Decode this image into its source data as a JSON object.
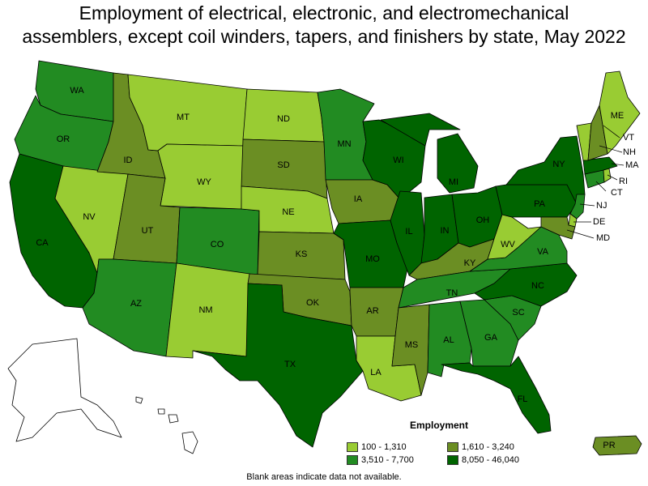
{
  "title": {
    "line1": "Employment of electrical, electronic, and electromechanical",
    "line2": "assemblers, except coil winders, tapers, and finishers by state, May 2022"
  },
  "colors": {
    "bin1": "#99cc33",
    "bin2": "#6b8e23",
    "bin3": "#228b22",
    "bin4": "#006400",
    "na": "#ffffff",
    "border": "#000000"
  },
  "legend": {
    "title": "Employment",
    "items": [
      {
        "label": "100 - 1,310",
        "color_key": "bin1"
      },
      {
        "label": "1,610 - 3,240",
        "color_key": "bin2"
      },
      {
        "label": "3,510 - 7,700",
        "color_key": "bin3"
      },
      {
        "label": "8,050 - 46,040",
        "color_key": "bin4"
      }
    ]
  },
  "footnote": "Blank areas indicate data not available.",
  "states": {
    "WA": {
      "label": "WA",
      "bin": "bin3"
    },
    "OR": {
      "label": "OR",
      "bin": "bin3"
    },
    "CA": {
      "label": "CA",
      "bin": "bin4"
    },
    "NV": {
      "label": "NV",
      "bin": "bin1"
    },
    "ID": {
      "label": "ID",
      "bin": "bin2"
    },
    "MT": {
      "label": "MT",
      "bin": "bin1"
    },
    "WY": {
      "label": "WY",
      "bin": "bin1"
    },
    "UT": {
      "label": "UT",
      "bin": "bin2"
    },
    "AZ": {
      "label": "AZ",
      "bin": "bin3"
    },
    "CO": {
      "label": "CO",
      "bin": "bin3"
    },
    "NM": {
      "label": "NM",
      "bin": "bin1"
    },
    "ND": {
      "label": "ND",
      "bin": "bin1"
    },
    "SD": {
      "label": "SD",
      "bin": "bin2"
    },
    "NE": {
      "label": "NE",
      "bin": "bin1"
    },
    "KS": {
      "label": "KS",
      "bin": "bin2"
    },
    "OK": {
      "label": "OK",
      "bin": "bin2"
    },
    "TX": {
      "label": "TX",
      "bin": "bin4"
    },
    "MN": {
      "label": "MN",
      "bin": "bin3"
    },
    "IA": {
      "label": "IA",
      "bin": "bin2"
    },
    "MO": {
      "label": "MO",
      "bin": "bin4"
    },
    "AR": {
      "label": "AR",
      "bin": "bin2"
    },
    "LA": {
      "label": "LA",
      "bin": "bin1"
    },
    "WI": {
      "label": "WI",
      "bin": "bin4"
    },
    "IL": {
      "label": "IL",
      "bin": "bin4"
    },
    "MI": {
      "label": "MI",
      "bin": "bin4"
    },
    "IN": {
      "label": "IN",
      "bin": "bin4"
    },
    "OH": {
      "label": "OH",
      "bin": "bin4"
    },
    "KY": {
      "label": "KY",
      "bin": "bin2"
    },
    "TN": {
      "label": "TN",
      "bin": "bin3"
    },
    "MS": {
      "label": "MS",
      "bin": "bin2"
    },
    "AL": {
      "label": "AL",
      "bin": "bin3"
    },
    "GA": {
      "label": "GA",
      "bin": "bin3"
    },
    "FL": {
      "label": "FL",
      "bin": "bin4"
    },
    "SC": {
      "label": "SC",
      "bin": "bin3"
    },
    "NC": {
      "label": "NC",
      "bin": "bin4"
    },
    "VA": {
      "label": "VA",
      "bin": "bin3"
    },
    "WV": {
      "label": "WV",
      "bin": "bin1"
    },
    "PA": {
      "label": "PA",
      "bin": "bin4"
    },
    "NY": {
      "label": "NY",
      "bin": "bin4"
    },
    "ME": {
      "label": "ME",
      "bin": "bin1"
    },
    "VT": {
      "label": "VT",
      "bin": "bin1"
    },
    "NH": {
      "label": "NH",
      "bin": "bin2"
    },
    "MA": {
      "label": "MA",
      "bin": "bin4"
    },
    "CT": {
      "label": "CT",
      "bin": "bin3"
    },
    "RI": {
      "label": "RI",
      "bin": "bin1"
    },
    "NJ": {
      "label": "NJ",
      "bin": "bin3"
    },
    "DE": {
      "label": "DE",
      "bin": "bin1"
    },
    "MD": {
      "label": "MD",
      "bin": "bin2"
    },
    "PR": {
      "label": "PR",
      "bin": "bin2"
    },
    "AK": {
      "label": "",
      "bin": "na"
    },
    "HI": {
      "label": "",
      "bin": "na"
    }
  }
}
